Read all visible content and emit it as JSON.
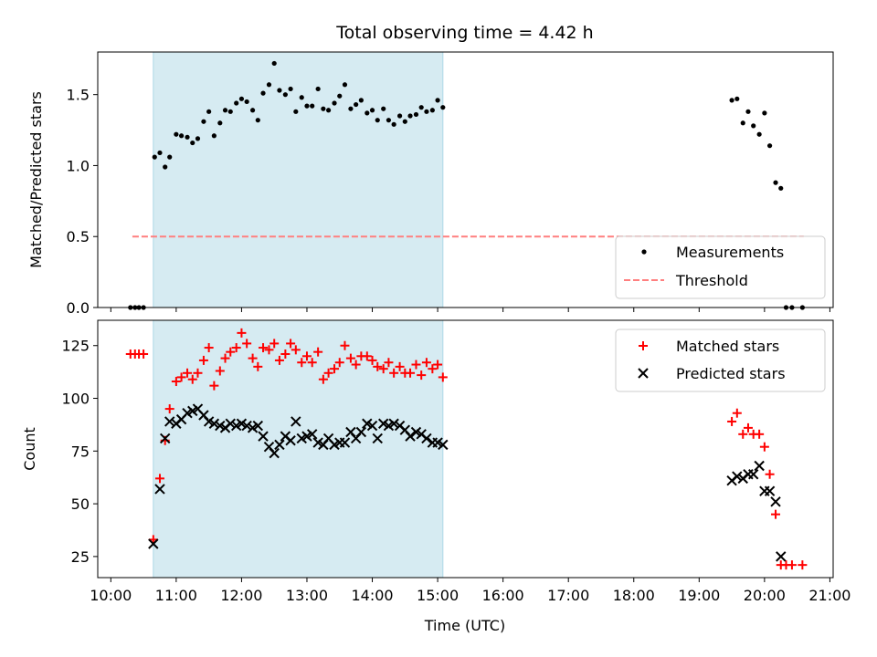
{
  "chart_data": {
    "type": "scatter",
    "title": "Total observing time = 4.42 h",
    "xlabel": "Time (UTC)",
    "x_unit": "hours UTC",
    "xlim": [
      9.8,
      21.05
    ],
    "x_ticks": [
      10,
      11,
      12,
      13,
      14,
      15,
      16,
      17,
      18,
      19,
      20,
      21
    ],
    "x_tick_labels": [
      "10:00",
      "11:00",
      "12:00",
      "13:00",
      "14:00",
      "15:00",
      "16:00",
      "17:00",
      "18:00",
      "19:00",
      "20:00",
      "21:00"
    ],
    "shaded_span": {
      "start": 10.65,
      "end": 15.08,
      "color": "#add8e6"
    },
    "top": {
      "ylabel": "Matched/Predicted stars",
      "ylim": [
        0,
        1.8
      ],
      "y_ticks": [
        0.0,
        0.5,
        1.0,
        1.5
      ],
      "y_tick_labels": [
        "0.0",
        "0.5",
        "1.0",
        "1.5"
      ],
      "legend": {
        "placement": "lower-right",
        "entries": [
          "Measurements",
          "Threshold"
        ]
      },
      "threshold": {
        "name": "Threshold",
        "y": 0.5,
        "x_start": 10.33,
        "x_end": 20.6,
        "color": "#ff7f7f"
      },
      "measurements": {
        "name": "Measurements",
        "color": "#000000",
        "points": [
          [
            10.3,
            0.0
          ],
          [
            10.37,
            0.0
          ],
          [
            10.43,
            0.0
          ],
          [
            10.5,
            0.0
          ],
          [
            10.67,
            1.06
          ],
          [
            10.75,
            1.09
          ],
          [
            10.83,
            0.99
          ],
          [
            10.9,
            1.06
          ],
          [
            11.0,
            1.22
          ],
          [
            11.08,
            1.21
          ],
          [
            11.17,
            1.2
          ],
          [
            11.25,
            1.16
          ],
          [
            11.33,
            1.19
          ],
          [
            11.42,
            1.31
          ],
          [
            11.5,
            1.38
          ],
          [
            11.58,
            1.21
          ],
          [
            11.67,
            1.3
          ],
          [
            11.75,
            1.39
          ],
          [
            11.83,
            1.38
          ],
          [
            11.92,
            1.44
          ],
          [
            12.0,
            1.47
          ],
          [
            12.08,
            1.45
          ],
          [
            12.17,
            1.39
          ],
          [
            12.25,
            1.32
          ],
          [
            12.33,
            1.51
          ],
          [
            12.42,
            1.57
          ],
          [
            12.5,
            1.72
          ],
          [
            12.58,
            1.53
          ],
          [
            12.67,
            1.5
          ],
          [
            12.75,
            1.54
          ],
          [
            12.83,
            1.38
          ],
          [
            12.92,
            1.48
          ],
          [
            13.0,
            1.42
          ],
          [
            13.08,
            1.42
          ],
          [
            13.17,
            1.54
          ],
          [
            13.25,
            1.4
          ],
          [
            13.33,
            1.39
          ],
          [
            13.42,
            1.44
          ],
          [
            13.5,
            1.49
          ],
          [
            13.58,
            1.57
          ],
          [
            13.67,
            1.4
          ],
          [
            13.75,
            1.43
          ],
          [
            13.83,
            1.46
          ],
          [
            13.92,
            1.37
          ],
          [
            14.0,
            1.39
          ],
          [
            14.08,
            1.32
          ],
          [
            14.17,
            1.4
          ],
          [
            14.25,
            1.32
          ],
          [
            14.33,
            1.29
          ],
          [
            14.42,
            1.35
          ],
          [
            14.5,
            1.31
          ],
          [
            14.58,
            1.35
          ],
          [
            14.67,
            1.36
          ],
          [
            14.75,
            1.41
          ],
          [
            14.83,
            1.38
          ],
          [
            14.92,
            1.39
          ],
          [
            15.0,
            1.46
          ],
          [
            15.08,
            1.41
          ],
          [
            19.5,
            1.46
          ],
          [
            19.58,
            1.47
          ],
          [
            19.67,
            1.3
          ],
          [
            19.75,
            1.38
          ],
          [
            19.83,
            1.28
          ],
          [
            19.92,
            1.22
          ],
          [
            20.0,
            1.37
          ],
          [
            20.08,
            1.14
          ],
          [
            20.17,
            0.88
          ],
          [
            20.25,
            0.84
          ],
          [
            20.33,
            0.0
          ],
          [
            20.42,
            0.0
          ],
          [
            20.58,
            0.0
          ]
        ]
      }
    },
    "bottom": {
      "ylabel": "Count",
      "ylim": [
        15,
        137
      ],
      "y_ticks": [
        25,
        50,
        75,
        100,
        125
      ],
      "y_tick_labels": [
        "25",
        "50",
        "75",
        "100",
        "125"
      ],
      "legend": {
        "placement": "upper-right",
        "entries": [
          "Matched stars",
          "Predicted stars"
        ]
      },
      "series": [
        {
          "name": "Matched stars",
          "marker": "plus",
          "color": "#ff0000",
          "points": [
            [
              10.3,
              121
            ],
            [
              10.37,
              121
            ],
            [
              10.43,
              121
            ],
            [
              10.5,
              121
            ],
            [
              10.65,
              33
            ],
            [
              10.75,
              62
            ],
            [
              10.83,
              80
            ],
            [
              10.9,
              95
            ],
            [
              11.0,
              108
            ],
            [
              11.08,
              110
            ],
            [
              11.17,
              112
            ],
            [
              11.25,
              109
            ],
            [
              11.33,
              112
            ],
            [
              11.42,
              118
            ],
            [
              11.5,
              124
            ],
            [
              11.58,
              106
            ],
            [
              11.67,
              113
            ],
            [
              11.75,
              119
            ],
            [
              11.83,
              122
            ],
            [
              11.92,
              124
            ],
            [
              12.0,
              131
            ],
            [
              12.08,
              126
            ],
            [
              12.17,
              119
            ],
            [
              12.25,
              115
            ],
            [
              12.33,
              124
            ],
            [
              12.42,
              123
            ],
            [
              12.5,
              126
            ],
            [
              12.58,
              118
            ],
            [
              12.67,
              121
            ],
            [
              12.75,
              126
            ],
            [
              12.83,
              123
            ],
            [
              12.92,
              117
            ],
            [
              13.0,
              120
            ],
            [
              13.08,
              117
            ],
            [
              13.17,
              122
            ],
            [
              13.25,
              109
            ],
            [
              13.33,
              112
            ],
            [
              13.42,
              114
            ],
            [
              13.5,
              117
            ],
            [
              13.58,
              125
            ],
            [
              13.67,
              119
            ],
            [
              13.75,
              116
            ],
            [
              13.83,
              120
            ],
            [
              13.92,
              120
            ],
            [
              14.0,
              118
            ],
            [
              14.08,
              115
            ],
            [
              14.17,
              114
            ],
            [
              14.25,
              117
            ],
            [
              14.33,
              112
            ],
            [
              14.42,
              115
            ],
            [
              14.5,
              112
            ],
            [
              14.58,
              112
            ],
            [
              14.67,
              116
            ],
            [
              14.75,
              111
            ],
            [
              14.83,
              117
            ],
            [
              14.92,
              114
            ],
            [
              15.0,
              116
            ],
            [
              15.08,
              110
            ],
            [
              19.5,
              89
            ],
            [
              19.58,
              93
            ],
            [
              19.67,
              83
            ],
            [
              19.75,
              86
            ],
            [
              19.83,
              83
            ],
            [
              19.92,
              83
            ],
            [
              20.0,
              77
            ],
            [
              20.08,
              64
            ],
            [
              20.17,
              45
            ],
            [
              20.25,
              21
            ],
            [
              20.33,
              21
            ],
            [
              20.42,
              21
            ],
            [
              20.58,
              21
            ]
          ]
        },
        {
          "name": "Predicted stars",
          "marker": "x",
          "color": "#000000",
          "points": [
            [
              10.65,
              31
            ],
            [
              10.75,
              57
            ],
            [
              10.83,
              81
            ],
            [
              10.9,
              89
            ],
            [
              11.0,
              88
            ],
            [
              11.08,
              90
            ],
            [
              11.17,
              93
            ],
            [
              11.25,
              94
            ],
            [
              11.33,
              95
            ],
            [
              11.42,
              92
            ],
            [
              11.5,
              89
            ],
            [
              11.58,
              88
            ],
            [
              11.67,
              87
            ],
            [
              11.75,
              86
            ],
            [
              11.83,
              88
            ],
            [
              11.92,
              87
            ],
            [
              12.0,
              88
            ],
            [
              12.08,
              87
            ],
            [
              12.17,
              86
            ],
            [
              12.25,
              87
            ],
            [
              12.33,
              82
            ],
            [
              12.42,
              77
            ],
            [
              12.5,
              74
            ],
            [
              12.58,
              78
            ],
            [
              12.67,
              82
            ],
            [
              12.75,
              80
            ],
            [
              12.83,
              89
            ],
            [
              12.92,
              81
            ],
            [
              13.0,
              82
            ],
            [
              13.08,
              83
            ],
            [
              13.17,
              79
            ],
            [
              13.25,
              78
            ],
            [
              13.33,
              81
            ],
            [
              13.42,
              78
            ],
            [
              13.5,
              79
            ],
            [
              13.58,
              79
            ],
            [
              13.67,
              84
            ],
            [
              13.75,
              81
            ],
            [
              13.83,
              84
            ],
            [
              13.92,
              88
            ],
            [
              14.0,
              87
            ],
            [
              14.08,
              81
            ],
            [
              14.17,
              88
            ],
            [
              14.25,
              87
            ],
            [
              14.33,
              88
            ],
            [
              14.42,
              87
            ],
            [
              14.5,
              85
            ],
            [
              14.58,
              82
            ],
            [
              14.67,
              84
            ],
            [
              14.75,
              83
            ],
            [
              14.83,
              81
            ],
            [
              14.92,
              79
            ],
            [
              15.0,
              79
            ],
            [
              15.08,
              78
            ],
            [
              19.5,
              61
            ],
            [
              19.58,
              63
            ],
            [
              19.67,
              62
            ],
            [
              19.75,
              64
            ],
            [
              19.83,
              64
            ],
            [
              19.92,
              68
            ],
            [
              20.0,
              56
            ],
            [
              20.08,
              56
            ],
            [
              20.17,
              51
            ],
            [
              20.25,
              25
            ]
          ]
        }
      ]
    }
  }
}
